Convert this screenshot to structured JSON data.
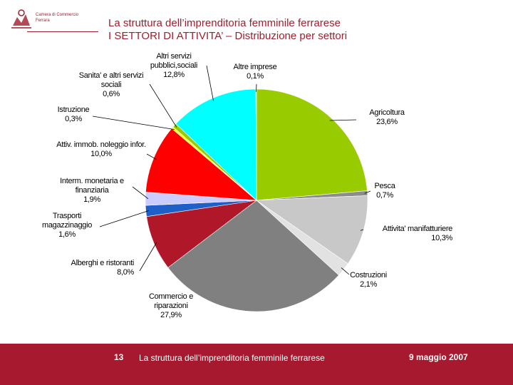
{
  "header": {
    "logo": [
      "Camera di Commercio",
      "Ferrara"
    ],
    "title": "La struttura dell’imprenditoria femminile ferrarese",
    "subtitle": "I SETTORI DI ATTIVITA’ – Distribuzione per settori"
  },
  "chart_data": {
    "type": "pie",
    "categories": [
      "Agricoltura",
      "Pesca",
      "Attivita' manifatturiere",
      "Costruzioni",
      "Commercio e riparazioni",
      "Alberghi e ristoranti",
      "Trasporti magazzinaggio",
      "Interm. monetaria e finanziaria",
      "Attiv. immob. noleggio infor.",
      "Istruzione",
      "Sanita' e altri servizi sociali",
      "Altri servizi pubblici,sociali",
      "Altre imprese"
    ],
    "values": [
      23.6,
      0.7,
      10.3,
      2.1,
      27.9,
      8.0,
      1.6,
      1.9,
      10.0,
      0.3,
      0.6,
      12.8,
      0.1
    ],
    "value_labels": [
      "23,6%",
      "0,7%",
      "10,3%",
      "2,1%",
      "27,9%",
      "8,0%",
      "1,6%",
      "1,9%",
      "10,0%",
      "0,3%",
      "0,6%",
      "12,8%",
      "0,1%"
    ],
    "colors": [
      "#99cc00",
      "#8c8c8c",
      "#c8c8c8",
      "#e2e2e2",
      "#808080",
      "#b0182a",
      "#1f5fc8",
      "#ccccff",
      "#ff0000",
      "#ffff00",
      "#99cc00",
      "#00ffff",
      "#ffffff"
    ]
  },
  "footer": {
    "page": "13",
    "text": "La struttura dell’imprenditoria femminile ferrarese",
    "date": "9 maggio 2007"
  }
}
